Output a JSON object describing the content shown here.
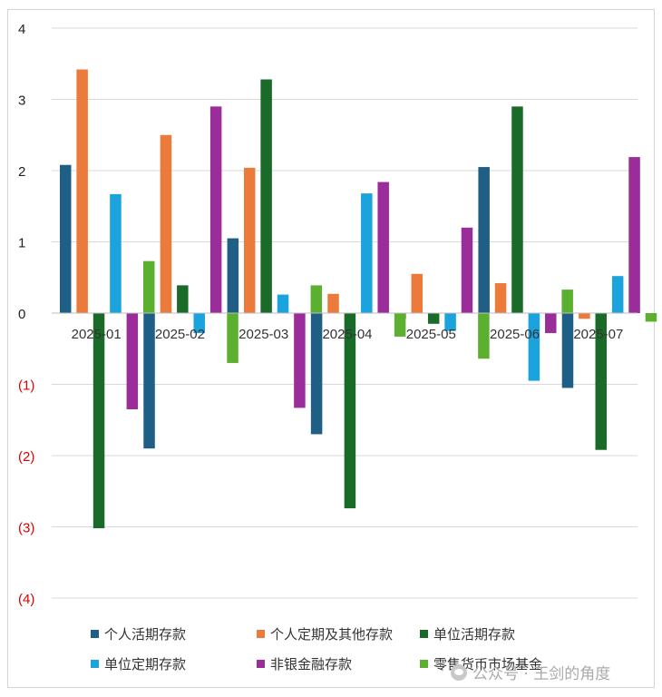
{
  "chart_data": {
    "type": "bar",
    "categories": [
      "2025-01",
      "2025-02",
      "2025-03",
      "2025-04",
      "2025-05",
      "2025-06",
      "2025-07"
    ],
    "y_ticks": [
      "4",
      "3",
      "2",
      "1",
      "0",
      "(1)",
      "(2)",
      "(3)",
      "(4)"
    ],
    "ylim": [
      -4,
      4
    ],
    "grid": true,
    "legend_position": "bottom",
    "series": [
      {
        "name": "个人活期存款",
        "color": "#1f5f86",
        "values": [
          2.08,
          -1.9,
          1.05,
          -1.7,
          -0.08,
          2.05,
          -1.05
        ]
      },
      {
        "name": "个人定期及其他存款",
        "color": "#ec7a3a",
        "values": [
          3.42,
          2.5,
          2.04,
          0.27,
          0.55,
          0.42,
          -0.08
        ]
      },
      {
        "name": "单位活期存款",
        "color": "#1a6b2a",
        "values": [
          -3.02,
          0.39,
          3.28,
          -2.74,
          -0.15,
          2.9,
          -1.92
        ]
      },
      {
        "name": "单位定期存款",
        "color": "#1aa3dc",
        "values": [
          1.67,
          -0.28,
          0.26,
          1.68,
          -0.25,
          -0.95,
          0.52
        ]
      },
      {
        "name": "非银金融存款",
        "color": "#9b2d9b",
        "values": [
          -1.35,
          2.9,
          -1.33,
          1.84,
          1.2,
          -0.28,
          2.19
        ]
      },
      {
        "name": "零售货币市场基金",
        "color": "#5cb030",
        "values": [
          0.73,
          -0.7,
          0.39,
          -0.33,
          -0.64,
          0.33,
          -0.12
        ]
      }
    ]
  },
  "negative_tick_color": "#e00000",
  "watermark": "公众号 · 王剑的角度"
}
